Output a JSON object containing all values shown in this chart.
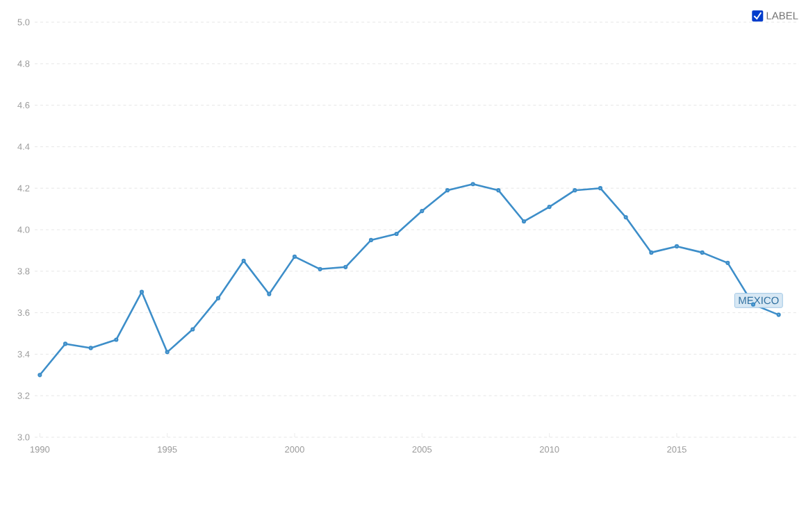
{
  "chart_data": {
    "type": "line",
    "x": [
      1990,
      1991,
      1992,
      1993,
      1994,
      1995,
      1996,
      1997,
      1998,
      1999,
      2000,
      2001,
      2002,
      2003,
      2004,
      2005,
      2006,
      2007,
      2008,
      2009,
      2010,
      2011,
      2012,
      2013,
      2014,
      2015,
      2016,
      2017,
      2018,
      2019
    ],
    "series": [
      {
        "name": "MEXICO",
        "color": "#3d8ec9",
        "values": [
          3.3,
          3.45,
          3.43,
          3.47,
          3.7,
          3.41,
          3.52,
          3.67,
          3.85,
          3.69,
          3.87,
          3.81,
          3.82,
          3.95,
          3.98,
          4.09,
          4.19,
          4.22,
          4.19,
          4.04,
          4.11,
          4.19,
          4.2,
          4.06,
          3.89,
          3.92,
          3.89,
          3.84,
          3.64,
          3.59
        ]
      }
    ],
    "xlim": [
      1989.8,
      2019.8
    ],
    "ylim": [
      3.0,
      5.0
    ],
    "xticks": [
      1990,
      1995,
      2000,
      2005,
      2010,
      2015
    ],
    "yticks": [
      {
        "value": 3.0,
        "label": "3.0"
      },
      {
        "value": 3.2,
        "label": "3.2"
      },
      {
        "value": 3.4,
        "label": "3.4"
      },
      {
        "value": 3.6,
        "label": "3.6"
      },
      {
        "value": 3.8,
        "label": "3.8"
      },
      {
        "value": 4.0,
        "label": "4.0"
      },
      {
        "value": 4.2,
        "label": "4.2"
      },
      {
        "value": 4.4,
        "label": "4.4"
      },
      {
        "value": 4.6,
        "label": "4.6"
      },
      {
        "value": 4.8,
        "label": "4.8"
      },
      {
        "value": 5.0,
        "label": "5.0"
      }
    ],
    "grid": "y",
    "marker": "circle",
    "line_style": "solid",
    "legend": false,
    "annotations": [
      "LABEL"
    ]
  }
}
